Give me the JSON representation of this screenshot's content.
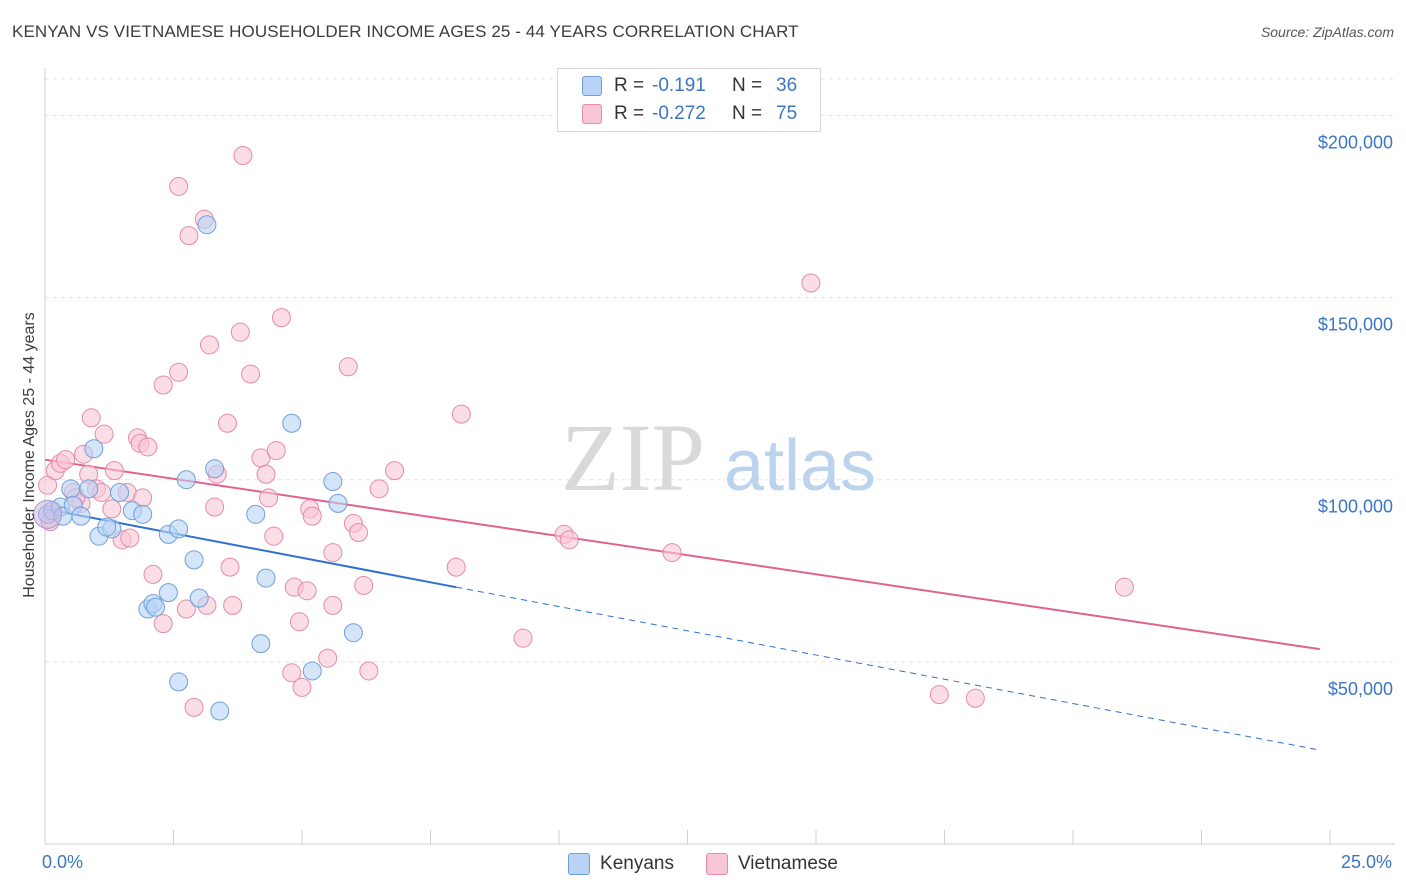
{
  "header": {
    "title": "KENYAN VS VIETNAMESE HOUSEHOLDER INCOME AGES 25 - 44 YEARS CORRELATION CHART",
    "source": "Source: ZipAtlas.com"
  },
  "watermark": {
    "zip": "ZIP",
    "atlas": "atlas"
  },
  "legend": {
    "rows": [
      {
        "r_label": "R =",
        "r_value": "-0.191",
        "n_label": "N =",
        "n_value": "36"
      },
      {
        "r_label": "R =",
        "r_value": "-0.272",
        "n_label": "N =",
        "n_value": "75"
      }
    ]
  },
  "colors": {
    "kenyans_fill": "#b8d3f5",
    "kenyans_stroke": "#6f9fd8",
    "kenyans_line": "#2f6fcf",
    "vietnamese_fill": "#f8c6d6",
    "vietnamese_stroke": "#e58aa8",
    "vietnamese_line": "#e0628e",
    "grid": "#e3e3e3",
    "tick_label": "#3a76c4"
  },
  "chart_data": {
    "type": "scatter",
    "title": "KENYAN VS VIETNAMESE HOUSEHOLDER INCOME AGES 25 - 44 YEARS CORRELATION CHART",
    "xlabel": "",
    "ylabel": "Householder Income Ages 25 - 44 years",
    "xlim": [
      0,
      25
    ],
    "ylim": [
      0,
      210000
    ],
    "x_tick_labels": [
      "0.0%",
      "25.0%"
    ],
    "y_ticks": [
      50000,
      100000,
      150000,
      200000
    ],
    "y_tick_labels": [
      "$50,000",
      "$100,000",
      "$150,000",
      "$200,000"
    ],
    "grid": true,
    "legend_position": "top-center",
    "series": [
      {
        "name": "Kenyans",
        "r": -0.191,
        "n": 36,
        "trend": {
          "x0": 0,
          "y0": 92000,
          "x1": 8,
          "y1": 70500,
          "dashed_to_x": 24.8,
          "dashed_to_y": 25800
        },
        "points": [
          [
            0.05,
            90500
          ],
          [
            0.15,
            91500
          ],
          [
            0.3,
            92500
          ],
          [
            0.35,
            90000
          ],
          [
            0.5,
            97500
          ],
          [
            0.55,
            93000
          ],
          [
            0.7,
            90000
          ],
          [
            0.85,
            97500
          ],
          [
            0.95,
            108500
          ],
          [
            1.05,
            84500
          ],
          [
            1.3,
            86500
          ],
          [
            1.45,
            96500
          ],
          [
            1.7,
            91500
          ],
          [
            1.9,
            90500
          ],
          [
            2.0,
            64500
          ],
          [
            2.1,
            66000
          ],
          [
            2.15,
            65000
          ],
          [
            2.4,
            85000
          ],
          [
            2.4,
            69000
          ],
          [
            2.6,
            86500
          ],
          [
            2.6,
            44500
          ],
          [
            2.75,
            100000
          ],
          [
            2.9,
            78000
          ],
          [
            3.0,
            67500
          ],
          [
            3.15,
            170000
          ],
          [
            3.3,
            103000
          ],
          [
            3.4,
            36500
          ],
          [
            4.1,
            90500
          ],
          [
            4.2,
            55000
          ],
          [
            4.3,
            73000
          ],
          [
            4.8,
            115500
          ],
          [
            5.2,
            47500
          ],
          [
            5.6,
            99500
          ],
          [
            5.7,
            93500
          ],
          [
            6.0,
            58000
          ],
          [
            1.2,
            87000
          ]
        ]
      },
      {
        "name": "Vietnamese",
        "r": -0.272,
        "n": 75,
        "trend": {
          "x0": 0,
          "y0": 105500,
          "x1": 24.8,
          "y1": 53500
        },
        "points": [
          [
            0.05,
            98500
          ],
          [
            0.2,
            102500
          ],
          [
            0.3,
            104500
          ],
          [
            0.4,
            105500
          ],
          [
            0.55,
            96500
          ],
          [
            0.7,
            93500
          ],
          [
            0.75,
            107000
          ],
          [
            0.85,
            101500
          ],
          [
            0.9,
            117000
          ],
          [
            1.0,
            97500
          ],
          [
            1.1,
            96500
          ],
          [
            1.15,
            112500
          ],
          [
            1.3,
            92000
          ],
          [
            1.35,
            102500
          ],
          [
            1.5,
            83500
          ],
          [
            1.6,
            96500
          ],
          [
            1.65,
            84000
          ],
          [
            1.8,
            111500
          ],
          [
            1.85,
            110000
          ],
          [
            1.9,
            95000
          ],
          [
            2.0,
            109000
          ],
          [
            2.1,
            74000
          ],
          [
            2.3,
            126000
          ],
          [
            2.3,
            60500
          ],
          [
            2.6,
            129500
          ],
          [
            2.6,
            180500
          ],
          [
            2.75,
            64500
          ],
          [
            2.8,
            167000
          ],
          [
            2.9,
            37500
          ],
          [
            3.1,
            171500
          ],
          [
            3.15,
            65500
          ],
          [
            3.2,
            137000
          ],
          [
            3.3,
            92500
          ],
          [
            3.35,
            101500
          ],
          [
            3.55,
            115500
          ],
          [
            3.6,
            76000
          ],
          [
            3.65,
            65500
          ],
          [
            3.8,
            140500
          ],
          [
            3.85,
            189000
          ],
          [
            4.0,
            129000
          ],
          [
            4.2,
            106000
          ],
          [
            4.3,
            101500
          ],
          [
            4.35,
            95000
          ],
          [
            4.45,
            84500
          ],
          [
            4.5,
            108000
          ],
          [
            4.6,
            144500
          ],
          [
            4.8,
            47000
          ],
          [
            4.85,
            70500
          ],
          [
            4.95,
            61000
          ],
          [
            5.0,
            43000
          ],
          [
            5.1,
            69500
          ],
          [
            5.15,
            92000
          ],
          [
            5.2,
            90000
          ],
          [
            5.5,
            51000
          ],
          [
            5.6,
            80000
          ],
          [
            5.6,
            65500
          ],
          [
            5.9,
            131000
          ],
          [
            6.0,
            88000
          ],
          [
            6.1,
            85500
          ],
          [
            6.2,
            71000
          ],
          [
            6.3,
            47500
          ],
          [
            6.5,
            97500
          ],
          [
            6.8,
            102500
          ],
          [
            8.0,
            76000
          ],
          [
            8.1,
            118000
          ],
          [
            9.3,
            56500
          ],
          [
            10.1,
            85000
          ],
          [
            10.2,
            83500
          ],
          [
            12.2,
            80000
          ],
          [
            14.9,
            154000
          ],
          [
            17.4,
            41000
          ],
          [
            18.1,
            40000
          ],
          [
            21.0,
            70500
          ],
          [
            0.1,
            88500
          ],
          [
            0.6,
            95000
          ]
        ]
      }
    ]
  }
}
